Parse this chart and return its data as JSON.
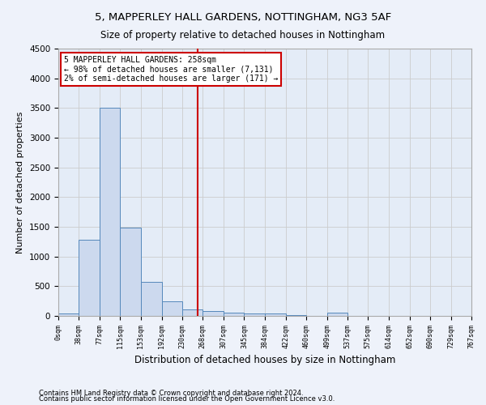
{
  "title1": "5, MAPPERLEY HALL GARDENS, NOTTINGHAM, NG3 5AF",
  "title2": "Size of property relative to detached houses in Nottingham",
  "xlabel": "Distribution of detached houses by size in Nottingham",
  "ylabel": "Number of detached properties",
  "footnote1": "Contains HM Land Registry data © Crown copyright and database right 2024.",
  "footnote2": "Contains public sector information licensed under the Open Government Licence v3.0.",
  "bar_edges": [
    0,
    38,
    77,
    115,
    153,
    192,
    230,
    268,
    307,
    345,
    384,
    422,
    460,
    499,
    537,
    575,
    614,
    652,
    690,
    729,
    767
  ],
  "bar_heights": [
    35,
    1280,
    3500,
    1480,
    575,
    240,
    110,
    80,
    60,
    45,
    35,
    10,
    0,
    60,
    0,
    0,
    0,
    0,
    0,
    0
  ],
  "bar_color": "#ccd9ee",
  "bar_edge_color": "#5588bb",
  "grid_color": "#cccccc",
  "background_color": "#eef2fa",
  "axes_bg_color": "#e4ecf7",
  "property_line_x": 258,
  "property_line_color": "#cc0000",
  "annotation_text": "5 MAPPERLEY HALL GARDENS: 258sqm\n← 98% of detached houses are smaller (7,131)\n2% of semi-detached houses are larger (171) →",
  "annotation_box_color": "#ffffff",
  "annotation_box_edge_color": "#cc0000",
  "ylim": [
    0,
    4500
  ],
  "yticks": [
    0,
    500,
    1000,
    1500,
    2000,
    2500,
    3000,
    3500,
    4000,
    4500
  ],
  "tick_labels": [
    "0sqm",
    "38sqm",
    "77sqm",
    "115sqm",
    "153sqm",
    "192sqm",
    "230sqm",
    "268sqm",
    "307sqm",
    "345sqm",
    "384sqm",
    "422sqm",
    "460sqm",
    "499sqm",
    "537sqm",
    "575sqm",
    "614sqm",
    "652sqm",
    "690sqm",
    "729sqm",
    "767sqm"
  ]
}
